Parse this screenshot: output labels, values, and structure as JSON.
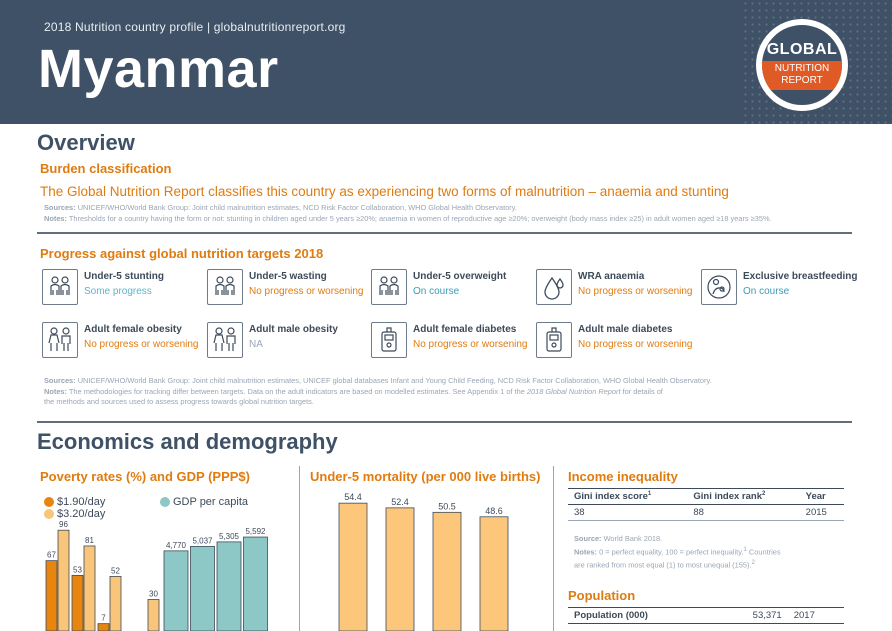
{
  "header": {
    "subtitle": "2018 Nutrition country profile  |  globalnutritionreport.org",
    "country": "Myanmar",
    "logo": {
      "line1": "GLOBAL",
      "line2": "NUTRITION",
      "line3": "REPORT"
    }
  },
  "overview": {
    "title": "Overview",
    "burden": {
      "title": "Burden classification",
      "text": "The Global Nutrition Report classifies this country as experiencing two forms of malnutrition – anaemia and stunting",
      "sources_label": "Sources:",
      "sources": "UNICEF/WHO/World Bank Group: Joint child malnutrition estimates, NCD Risk Factor Collaboration, WHO Global Health Observatory.",
      "notes_label": "Notes:",
      "notes": "Thresholds for a country having the form or not: stunting in children aged under 5 years ≥20%; anaemia in women of reproductive age ≥20%; overweight (body mass index ≥25) in adult women aged ≥18 years ≥35%."
    },
    "progress": {
      "title": "Progress against global nutrition targets 2018",
      "targets": [
        {
          "label": "Under-5 stunting",
          "status": "Some progress",
          "icon": "children-icon",
          "color": "#5bb5c9"
        },
        {
          "label": "Under-5 wasting",
          "status": "No progress or worsening",
          "icon": "children-icon",
          "color": "#e07b10"
        },
        {
          "label": "Under-5 overweight",
          "status": "On course",
          "icon": "children-icon",
          "color": "#3b9cb5"
        },
        {
          "label": "WRA anaemia",
          "status": "No progress or worsening",
          "icon": "blood-drop-icon",
          "color": "#e07b10"
        },
        {
          "label": "Exclusive breastfeeding",
          "status": "On course",
          "icon": "breastfeeding-icon",
          "color": "#3b9cb5"
        },
        {
          "label": "Adult female obesity",
          "status": "No progress or worsening",
          "icon": "adults-icon",
          "color": "#e07b10"
        },
        {
          "label": "Adult male obesity",
          "status": "NA",
          "icon": "adults-icon",
          "color": "#9aa6b4"
        },
        {
          "label": "Adult female diabetes",
          "status": "No progress or worsening",
          "icon": "glucose-meter-icon",
          "color": "#e07b10"
        },
        {
          "label": "Adult male diabetes",
          "status": "No progress or worsening",
          "icon": "glucose-meter-icon",
          "color": "#e07b10"
        }
      ],
      "sources_label": "Sources:",
      "sources": "UNICEF/WHO/World Bank Group: Joint child malnutrition estimates, UNICEF global databases Infant and Young Child Feeding, NCD Risk Factor Collaboration, WHO Global Health Observatory.",
      "notes_label": "Notes:",
      "notes1": "The methodologies for tracking differ between targets. Data on the adult indicators are based on modelled estimates. See Appendix 1 of the ",
      "notes_italic": "2018 Global Nutrition Report",
      "notes2": " for details of",
      "notes3": "the methods and sources used to assess progress towards global nutrition targets."
    }
  },
  "economics": {
    "title": "Economics and demography",
    "poverty_title": "Poverty rates (%) and GDP (PPP$)",
    "mortality_title": "Under-5 mortality (per 000 live births)",
    "income": {
      "title": "Income inequality",
      "headers": [
        "Gini index score",
        "Gini index rank",
        "Year"
      ],
      "sup": [
        "1",
        "2"
      ],
      "row": [
        "38",
        "88",
        "2015"
      ],
      "source_label": "Source:",
      "source": "World Bank 2018.",
      "notes_label": "Notes:",
      "notes": "0 = perfect equality, 100 = perfect inequality.",
      "notes_sup1": "1",
      "notes2": "Countries",
      "notes3": "are ranked from most equal (1) to most unequal (155).",
      "notes_sup2": "2"
    },
    "population": {
      "title": "Population",
      "label": "Population (000)",
      "value": "53,371",
      "year": "2017"
    }
  },
  "chart_data": [
    {
      "type": "bar",
      "title": "Poverty rates (%) and GDP (PPP$)",
      "series": [
        {
          "name": "$1.90/day",
          "color": "#e8850f",
          "values": [
            67,
            53,
            7,
            null
          ]
        },
        {
          "name": "$3.20/day",
          "color": "#f9c57a",
          "values": [
            96,
            81,
            52,
            30
          ]
        }
      ],
      "series2": {
        "name": "GDP per capita",
        "color": "#8dc7c6",
        "values": [
          4770,
          5037,
          5305,
          5592
        ],
        "labels": [
          "4,770",
          "5,037",
          "5,305",
          "5,592"
        ]
      }
    },
    {
      "type": "bar",
      "title": "Under-5 mortality (per 000 live births)",
      "color": "#fcc77b",
      "values": [
        54.4,
        52.4,
        50.5,
        48.6
      ],
      "labels": [
        "54.4",
        "52.4",
        "50.5",
        "48.6"
      ]
    }
  ]
}
